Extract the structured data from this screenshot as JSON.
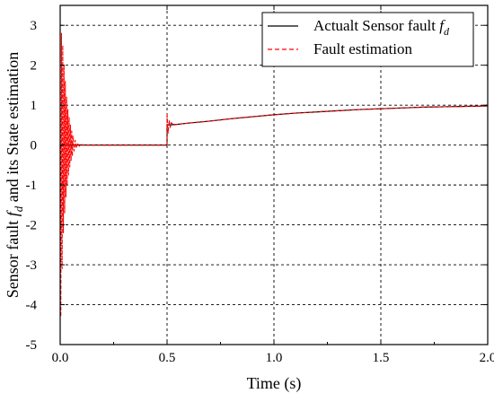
{
  "chart_data": {
    "type": "line",
    "xlabel": "Time (s)",
    "ylabel": "Sensor fault f_d and its State estimation",
    "ylabel_parts": {
      "prefix": "Sensor fault ",
      "symbol": "f",
      "subscript": "d",
      "suffix": " and its State estimation"
    },
    "xlim": [
      0,
      2
    ],
    "ylim": [
      -5,
      3.5
    ],
    "xticks": [
      0,
      0.5,
      1.0,
      1.5,
      2.0
    ],
    "xtick_labels": [
      "0.0",
      "0.5",
      "1.0",
      "1.5",
      "2.0"
    ],
    "yticks": [
      -5,
      -4,
      -3,
      -2,
      -1,
      0,
      1,
      2,
      3
    ],
    "ytick_labels": [
      "-5",
      "-4",
      "-3",
      "-2",
      "-1",
      "0",
      "1",
      "2",
      "3"
    ],
    "grid": true,
    "legend_position": "top-right",
    "series": [
      {
        "name": "Actualt Sensor fault f_d",
        "legend_parts": {
          "prefix": "Actualt Sensor fault ",
          "symbol": "f",
          "subscript": "d"
        },
        "color": "#000000",
        "style": "solid",
        "x": [
          0,
          0.5,
          0.5,
          0.55,
          0.6,
          0.7,
          0.8,
          0.9,
          1.0,
          1.1,
          1.2,
          1.3,
          1.4,
          1.5,
          1.6,
          1.7,
          1.8,
          1.9,
          2.0
        ],
        "y": [
          0,
          0,
          0.5,
          0.52,
          0.55,
          0.6,
          0.66,
          0.71,
          0.76,
          0.8,
          0.83,
          0.86,
          0.89,
          0.91,
          0.93,
          0.95,
          0.96,
          0.97,
          0.98
        ]
      },
      {
        "name": "Fault estimation",
        "color": "#ff0000",
        "style": "dashed",
        "x": [
          0,
          0.003,
          0.006,
          0.009,
          0.012,
          0.015,
          0.018,
          0.021,
          0.024,
          0.027,
          0.03,
          0.033,
          0.036,
          0.039,
          0.042,
          0.045,
          0.048,
          0.051,
          0.054,
          0.057,
          0.06,
          0.065,
          0.07,
          0.075,
          0.08,
          0.09,
          0.1,
          0.12,
          0.5,
          0.5,
          0.505,
          0.51,
          0.515,
          0.52,
          0.53,
          0.55,
          0.6,
          0.7,
          0.8,
          0.9,
          1.0,
          1.1,
          1.2,
          1.3,
          1.4,
          1.5,
          1.6,
          1.7,
          1.8,
          1.9,
          2.0
        ],
        "y": [
          0,
          -4.3,
          2.8,
          -3.1,
          2.5,
          -2.2,
          2.0,
          -1.7,
          1.6,
          -1.3,
          1.2,
          -1.0,
          0.9,
          -0.75,
          0.7,
          -0.55,
          0.5,
          -0.4,
          0.35,
          -0.28,
          0.22,
          -0.15,
          0.12,
          -0.08,
          0.05,
          -0.03,
          0.01,
          0,
          0,
          0.8,
          0.3,
          0.62,
          0.44,
          0.56,
          0.5,
          0.52,
          0.55,
          0.6,
          0.66,
          0.71,
          0.76,
          0.8,
          0.83,
          0.86,
          0.89,
          0.91,
          0.93,
          0.95,
          0.96,
          0.97,
          0.98
        ]
      }
    ]
  }
}
